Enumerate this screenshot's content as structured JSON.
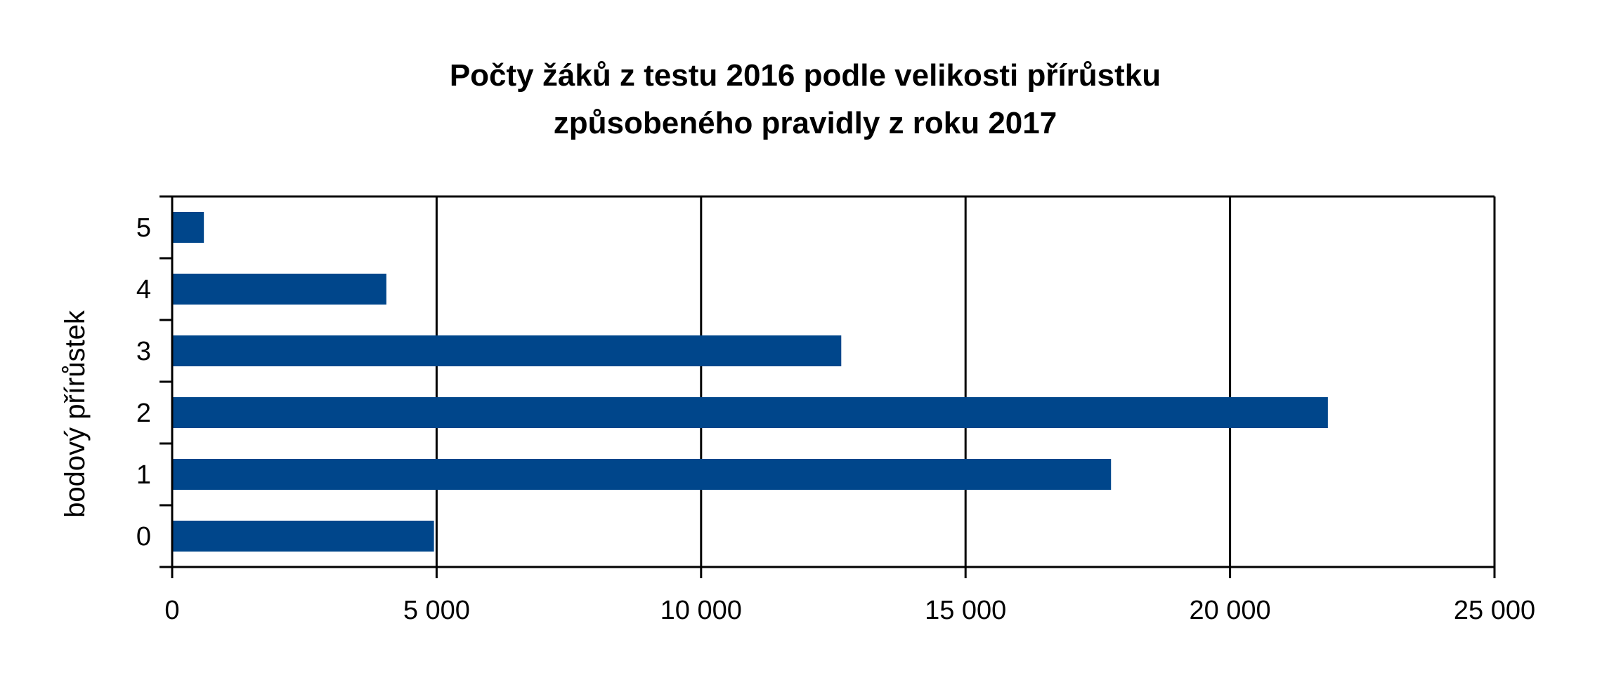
{
  "chart_data": {
    "type": "bar",
    "orientation": "horizontal",
    "title_lines": [
      "Počty žáků z testu 2016 podle velikosti přírůstku",
      "způsobeného pravidly z roku 2017"
    ],
    "xlabel": "",
    "ylabel": "bodový přírůstek",
    "categories": [
      "0",
      "1",
      "2",
      "3",
      "4",
      "5"
    ],
    "values": [
      4950,
      17750,
      21850,
      12650,
      4050,
      600
    ],
    "xlim": [
      0,
      25000
    ],
    "x_ticks": [
      0,
      5000,
      10000,
      15000,
      20000,
      25000
    ],
    "x_tick_labels": [
      "0",
      "5 000",
      "10 000",
      "15 000",
      "20 000",
      "25 000"
    ],
    "grid": "vertical",
    "legend": "none",
    "bar_color": "#00468b",
    "axis_color": "#000000"
  }
}
